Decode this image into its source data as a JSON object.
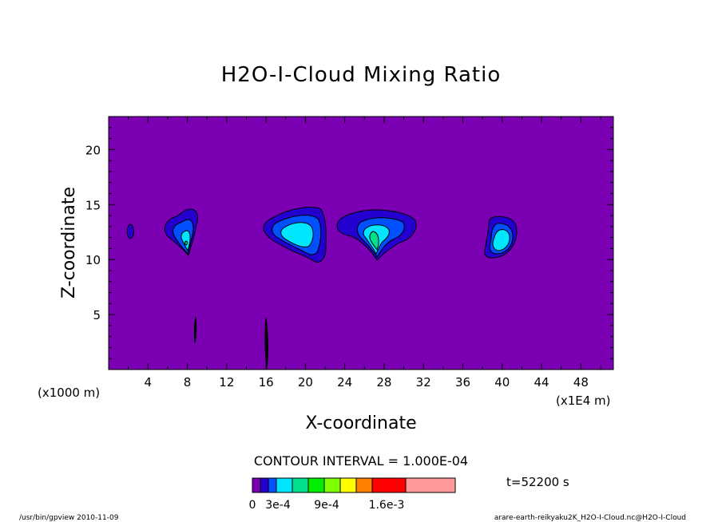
{
  "chart_data": {
    "type": "contour",
    "title": "H2O-I-Cloud Mixing Ratio",
    "xlabel": "X-coordinate",
    "ylabel": "Z-coordinate",
    "x_unit_left": "(x1000 m)",
    "x_unit_right": "(x1E4 m)",
    "x_ticks": [
      "4",
      "8",
      "12",
      "16",
      "20",
      "24",
      "28",
      "32",
      "36",
      "40",
      "44",
      "48"
    ],
    "x_tick_values": [
      4,
      8,
      12,
      16,
      20,
      24,
      28,
      32,
      36,
      40,
      44,
      48
    ],
    "y_ticks": [
      "5",
      "10",
      "15",
      "20"
    ],
    "y_tick_values": [
      5,
      10,
      15,
      20
    ],
    "xlim": [
      0,
      51.3
    ],
    "ylim": [
      0,
      23
    ],
    "contour_interval_text": "CONTOUR INTERVAL = 1.000E-04",
    "time_text": "t=52200 s",
    "colorbar_labels": [
      "0",
      "3e-4",
      "9e-4",
      "1.6e-3"
    ],
    "colorbar_colors": [
      "#7b00b4",
      "#2400d0",
      "#0050ff",
      "#00e6ff",
      "#00e08a",
      "#00ee00",
      "#80ff00",
      "#ffff00",
      "#ff8000",
      "#ff0000",
      "#ff9a9a"
    ],
    "background_color": "#7b00b4",
    "footer_left": "/usr/bin/gpview   2010-11-09",
    "footer_right": "arare-earth-reikyaku2K_H2O-I-Cloud.nc@H2O-I-Cloud",
    "clouds": [
      {
        "x": 2.3,
        "z": 12.5,
        "peak": "1e-4"
      },
      {
        "x": 8.0,
        "z": 12.5,
        "peak": "4e-4"
      },
      {
        "x": 19.0,
        "z": 12.5,
        "peak": "3e-4"
      },
      {
        "x": 27.0,
        "z": 12.5,
        "peak": "5e-4"
      },
      {
        "x": 40.0,
        "z": 12.0,
        "peak": "3e-4"
      }
    ]
  }
}
